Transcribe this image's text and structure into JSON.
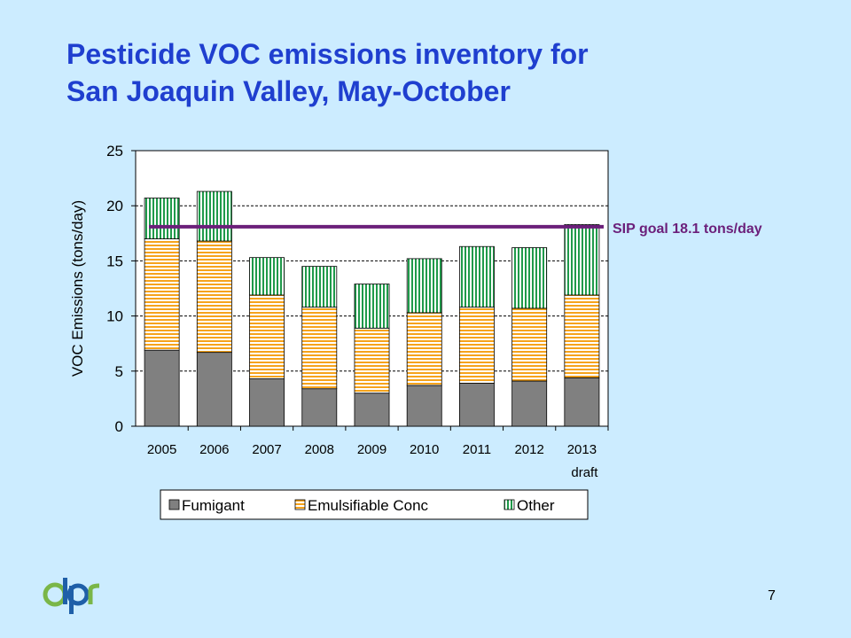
{
  "title_line1": "Pesticide VOC emissions inventory for",
  "title_line2": "San Joaquin Valley, May-October",
  "page_number": "7",
  "logo_text": "dpr",
  "colors": {
    "background": "#ccecff",
    "title": "#1f3fcf",
    "fumigant": "#808080",
    "emulsifiable": "#f6a31c",
    "other": "#1f9a4a",
    "goal_line": "#6b1f7a"
  },
  "chart_data": {
    "type": "bar",
    "stacked": true,
    "categories": [
      "2005",
      "2006",
      "2007",
      "2008",
      "2009",
      "2010",
      "2011",
      "2012",
      "2013"
    ],
    "category_sublabels": [
      "",
      "",
      "",
      "",
      "",
      "",
      "",
      "",
      "draft"
    ],
    "series": [
      {
        "name": "Fumigant",
        "values": [
          6.9,
          6.7,
          4.3,
          3.4,
          3.0,
          3.7,
          3.9,
          4.1,
          4.4
        ]
      },
      {
        "name": "Emulsifiable Conc",
        "values": [
          10.1,
          10.1,
          7.6,
          7.4,
          5.9,
          6.6,
          6.9,
          6.6,
          7.5
        ]
      },
      {
        "name": "Other",
        "values": [
          3.7,
          4.5,
          3.4,
          3.7,
          4.0,
          4.9,
          5.5,
          5.5,
          6.4
        ]
      }
    ],
    "ylabel": "VOC Emissions (tons/day)",
    "xlabel": "",
    "ylim": [
      0,
      25
    ],
    "yticks": [
      "0",
      "5",
      "10",
      "15",
      "20",
      "25"
    ],
    "grid": true,
    "legend_position": "bottom",
    "goal_line": {
      "value": 18.1,
      "label": "SIP goal 18.1 tons/day"
    }
  }
}
